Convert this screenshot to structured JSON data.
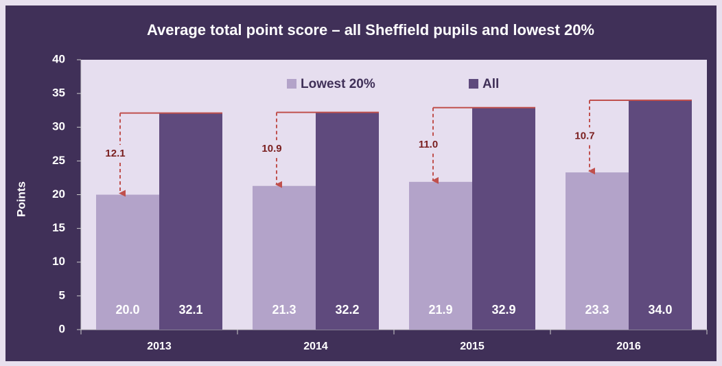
{
  "chart_data": {
    "type": "bar",
    "title": "Average total point score – all Sheffield pupils and lowest 20%",
    "ylabel": "Points",
    "categories": [
      "2013",
      "2014",
      "2015",
      "2016"
    ],
    "series": [
      {
        "name": "Lowest 20%",
        "color": "#b3a3c9",
        "values": [
          20.0,
          21.3,
          21.9,
          23.3
        ],
        "value_labels": [
          "20.0",
          "21.3",
          "21.9",
          "23.3"
        ]
      },
      {
        "name": "All",
        "color": "#5f4a7d",
        "values": [
          32.1,
          32.2,
          32.9,
          34.0
        ],
        "value_labels": [
          "32.1",
          "32.2",
          "32.9",
          "34.0"
        ]
      }
    ],
    "differences": [
      12.1,
      10.9,
      11.0,
      10.7
    ],
    "difference_labels": [
      "12.1",
      "10.9",
      "11.0",
      "10.7"
    ],
    "difference_color": "#c0504d",
    "ylim": [
      0,
      40
    ],
    "yticks": [
      0,
      5,
      10,
      15,
      20,
      25,
      30,
      35,
      40
    ],
    "legend": "top"
  }
}
